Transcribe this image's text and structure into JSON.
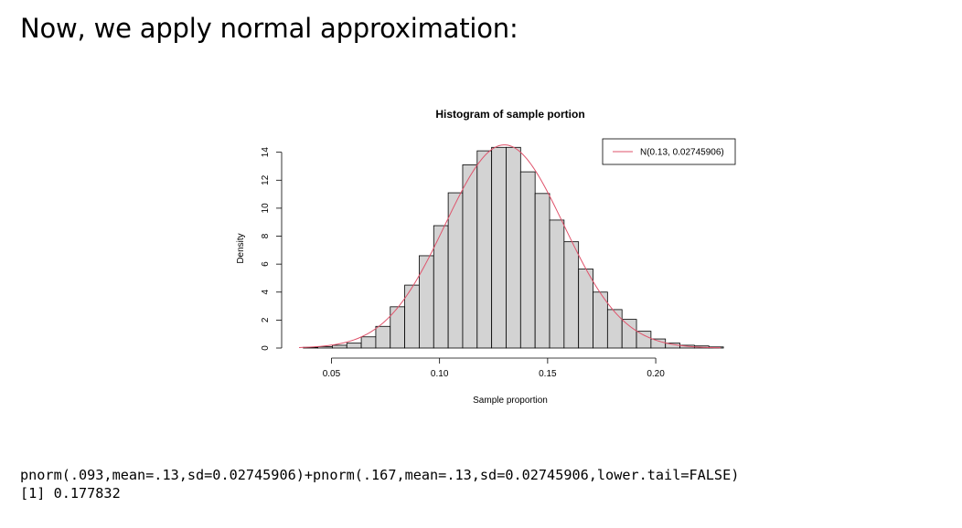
{
  "slide": {
    "heading": "Now, we apply normal approximation:"
  },
  "code": {
    "command": "pnorm(.093,mean=.13,sd=0.02745906)+pnorm(.167,mean=.13,sd=0.02745906,lower.tail=FALSE)",
    "output": "[1] 0.177832"
  },
  "chart_data": {
    "type": "bar",
    "title": "Histogram of sample portion",
    "xlabel": "Sample proportion",
    "ylabel": "Density",
    "xlim": [
      0.035,
      0.23
    ],
    "ylim": [
      0,
      14.5
    ],
    "x_ticks": [
      "0.05",
      "0.10",
      "0.15",
      "0.20"
    ],
    "x_tick_values": [
      0.05,
      0.1,
      0.15,
      0.2
    ],
    "y_ticks": [
      "0",
      "2",
      "4",
      "6",
      "8",
      "10",
      "12",
      "14"
    ],
    "y_tick_values": [
      0,
      2,
      4,
      6,
      8,
      10,
      12,
      14
    ],
    "bin_width": 0.0067,
    "bin_starts": [
      0.037,
      0.0437,
      0.0504,
      0.0571,
      0.0638,
      0.0705,
      0.0772,
      0.0839,
      0.0906,
      0.0973,
      0.104,
      0.1107,
      0.1174,
      0.1241,
      0.1308,
      0.1375,
      0.1442,
      0.1509,
      0.1576,
      0.1643,
      0.171,
      0.1777,
      0.1844,
      0.1911,
      0.1978,
      0.2045,
      0.2112,
      0.2179,
      0.2246
    ],
    "values": [
      0.05,
      0.1,
      0.2,
      0.35,
      0.8,
      1.55,
      2.95,
      4.5,
      6.6,
      8.75,
      11.1,
      13.1,
      14.1,
      14.35,
      14.35,
      12.6,
      11.05,
      9.15,
      7.6,
      5.65,
      4.0,
      2.75,
      2.05,
      1.2,
      0.65,
      0.35,
      0.2,
      0.15,
      0.08
    ],
    "series": [
      {
        "name": "N(0.13, 0.02745906)",
        "type": "line",
        "mean": 0.13,
        "sd": 0.02745906,
        "color": "#DF536B"
      }
    ],
    "bar_fill": "#D3D3D3",
    "bar_stroke": "#000000",
    "legend_position": "top-right",
    "grid": false
  }
}
